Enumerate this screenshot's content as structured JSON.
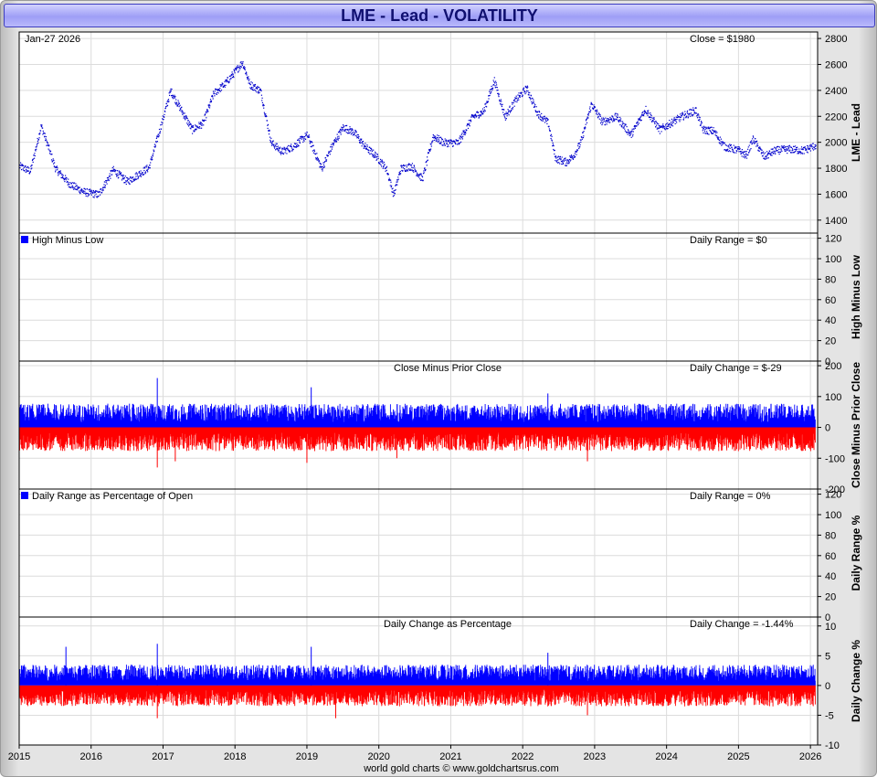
{
  "chart_title": "LME - Lead - VOLATILITY",
  "footer": "world gold charts © www.goldchartsrus.com",
  "colors": {
    "line": "#0000cc",
    "up": "#0000ff",
    "down": "#ff0000",
    "grid": "#dcdcdc",
    "title_bg": "#a8a8f8"
  },
  "chart_data": [
    {
      "type": "line",
      "id": "close",
      "ylabel": "LME - Lead",
      "top_left": "Jan-27  2026",
      "top_right": "Close = $1980",
      "ylim": [
        1300,
        2850
      ],
      "yticks": [
        1400,
        1600,
        1800,
        2000,
        2200,
        2400,
        2600,
        2800
      ],
      "x": [
        2015.0,
        2015.15,
        2015.3,
        2015.5,
        2015.7,
        2015.9,
        2016.1,
        2016.3,
        2016.5,
        2016.8,
        2016.95,
        2017.1,
        2017.25,
        2017.4,
        2017.55,
        2017.7,
        2017.85,
        2018.0,
        2018.1,
        2018.2,
        2018.35,
        2018.5,
        2018.65,
        2018.8,
        2019.0,
        2019.2,
        2019.35,
        2019.5,
        2019.65,
        2019.8,
        2019.95,
        2020.1,
        2020.2,
        2020.3,
        2020.45,
        2020.6,
        2020.75,
        2020.9,
        2021.1,
        2021.3,
        2021.45,
        2021.6,
        2021.75,
        2021.9,
        2022.05,
        2022.2,
        2022.35,
        2022.45,
        2022.6,
        2022.7,
        2022.8,
        2022.95,
        2023.1,
        2023.3,
        2023.5,
        2023.7,
        2023.9,
        2024.05,
        2024.2,
        2024.4,
        2024.5,
        2024.65,
        2024.8,
        2025.0,
        2025.1,
        2025.2,
        2025.35,
        2025.5,
        2025.7,
        2025.9,
        2026.07
      ],
      "y": [
        1820,
        1780,
        2130,
        1800,
        1680,
        1620,
        1600,
        1790,
        1700,
        1810,
        2100,
        2400,
        2250,
        2100,
        2150,
        2380,
        2450,
        2550,
        2620,
        2450,
        2400,
        2000,
        1930,
        1970,
        2060,
        1800,
        1980,
        2120,
        2080,
        1970,
        1900,
        1800,
        1600,
        1800,
        1820,
        1720,
        2050,
        2000,
        2000,
        2200,
        2240,
        2480,
        2200,
        2330,
        2420,
        2230,
        2150,
        1880,
        1850,
        1900,
        2000,
        2300,
        2160,
        2200,
        2060,
        2260,
        2100,
        2150,
        2200,
        2250,
        2100,
        2090,
        1970,
        1940,
        1900,
        2030,
        1890,
        1940,
        1950,
        1940,
        1980
      ]
    },
    {
      "type": "bar",
      "id": "hml",
      "ylabel": "High Minus Low",
      "legend": "High Minus Low",
      "top_right": "Daily Range = $0",
      "ylim": [
        0,
        125
      ],
      "yticks": [
        0,
        20,
        40,
        60,
        80,
        100,
        120
      ],
      "values": []
    },
    {
      "type": "bar",
      "id": "cmpc",
      "ylabel": "Close Minus Prior Close",
      "top_center": "Close Minus Prior Close",
      "top_right": "Daily Change = $-29",
      "ylim": [
        -200,
        215
      ],
      "yticks": [
        -200,
        -100,
        0,
        100,
        200
      ],
      "sample": {
        "approx_daily_abs_max": 110,
        "spikes": [
          [
            2016.92,
            160
          ],
          [
            2016.92,
            -130
          ],
          [
            2017.17,
            -110
          ],
          [
            2019.0,
            -115
          ],
          [
            2019.06,
            130
          ],
          [
            2020.25,
            -100
          ],
          [
            2022.35,
            110
          ],
          [
            2022.9,
            -110
          ]
        ]
      }
    },
    {
      "type": "bar",
      "id": "drpo",
      "ylabel": "Daily Range %",
      "legend": "Daily Range as Percentage of Open",
      "top_right": "Daily Range = 0%",
      "ylim": [
        0,
        125
      ],
      "yticks": [
        0,
        20,
        40,
        60,
        80,
        100,
        120
      ],
      "values": []
    },
    {
      "type": "bar",
      "id": "dcp",
      "ylabel": "Daily Change %",
      "top_center": "Daily Change as Percentage",
      "top_right": "Daily Change = -1.44%",
      "ylim": [
        -10,
        11.5
      ],
      "yticks": [
        -10,
        -5,
        0,
        5,
        10
      ],
      "sample": {
        "approx_daily_abs_max": 5,
        "spikes": [
          [
            2015.65,
            6.5
          ],
          [
            2016.92,
            7
          ],
          [
            2016.92,
            -5.5
          ],
          [
            2019.06,
            6.5
          ],
          [
            2019.4,
            -5.5
          ],
          [
            2022.35,
            5.5
          ],
          [
            2022.9,
            -5
          ]
        ]
      }
    }
  ],
  "x_axis": {
    "xlim": [
      2015.0,
      2026.1
    ],
    "ticks": [
      "2015",
      "2016",
      "2017",
      "2018",
      "2019",
      "2020",
      "2021",
      "2022",
      "2023",
      "2024",
      "2025",
      "2026"
    ]
  }
}
